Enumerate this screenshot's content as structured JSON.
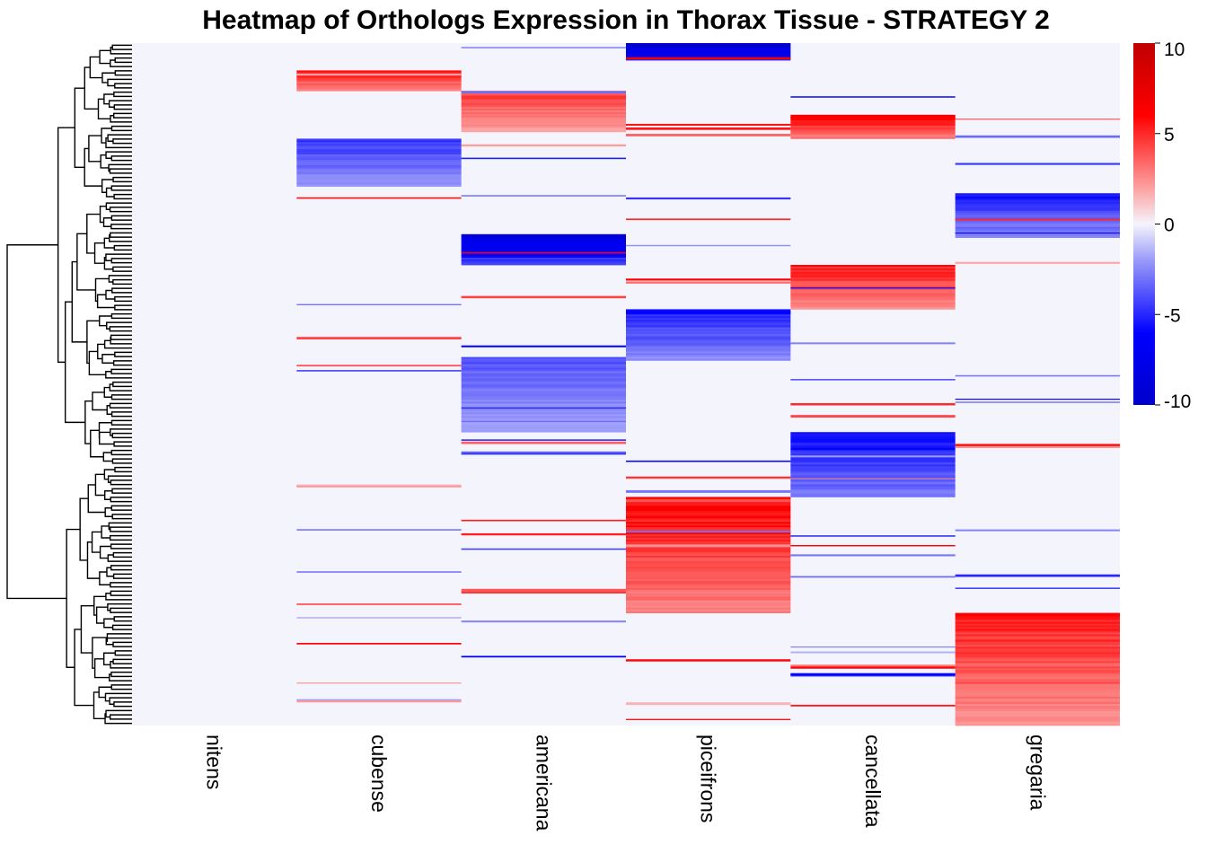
{
  "chart_data": {
    "type": "heatmap",
    "title": "Heatmap of Orthologs Expression in Thorax Tissue - STRATEGY 2",
    "columns": [
      "nitens",
      "cubense",
      "americana",
      "piceifrons",
      "cancellata",
      "gregaria"
    ],
    "row_order": "hierarchical clustering (dendrogram on left)",
    "n_rows_approx": 800,
    "value_range": [
      -10,
      10
    ],
    "colorbar": {
      "ticks": [
        10,
        5,
        0,
        -5,
        -10
      ],
      "tick_labels": [
        "10",
        "5",
        "0",
        "-5",
        "-10"
      ],
      "stops": [
        {
          "value": -10,
          "color": "#0000cc"
        },
        {
          "value": -6,
          "color": "#0000ff"
        },
        {
          "value": -2,
          "color": "#9a9afa"
        },
        {
          "value": 0,
          "color": "#f4f4fc"
        },
        {
          "value": 2,
          "color": "#fca0a0"
        },
        {
          "value": 6,
          "color": "#ff0000"
        },
        {
          "value": 10,
          "color": "#c00000"
        }
      ]
    },
    "blocks": [
      {
        "column": "cubense",
        "row_start": 0.04,
        "row_end": 0.07,
        "value": 3.5
      },
      {
        "column": "cubense",
        "row_start": 0.14,
        "row_end": 0.21,
        "value": -3
      },
      {
        "column": "americana",
        "row_start": 0.07,
        "row_end": 0.13,
        "value": 3
      },
      {
        "column": "americana",
        "row_start": 0.28,
        "row_end": 0.325,
        "value": -6
      },
      {
        "column": "americana",
        "row_start": 0.46,
        "row_end": 0.57,
        "value": -2.5
      },
      {
        "column": "piceifrons",
        "row_start": 0.0,
        "row_end": 0.025,
        "value": -7
      },
      {
        "column": "piceifrons",
        "row_start": 0.39,
        "row_end": 0.465,
        "value": -3.5
      },
      {
        "column": "piceifrons",
        "row_start": 0.665,
        "row_end": 0.835,
        "value": 4
      },
      {
        "column": "cancellata",
        "row_start": 0.105,
        "row_end": 0.14,
        "value": 4
      },
      {
        "column": "cancellata",
        "row_start": 0.325,
        "row_end": 0.39,
        "value": 3.5
      },
      {
        "column": "cancellata",
        "row_start": 0.57,
        "row_end": 0.665,
        "value": -4
      },
      {
        "column": "gregaria",
        "row_start": 0.22,
        "row_end": 0.285,
        "value": -3.5
      },
      {
        "column": "gregaria",
        "row_start": 0.835,
        "row_end": 1.0,
        "value": 3.5
      }
    ]
  }
}
